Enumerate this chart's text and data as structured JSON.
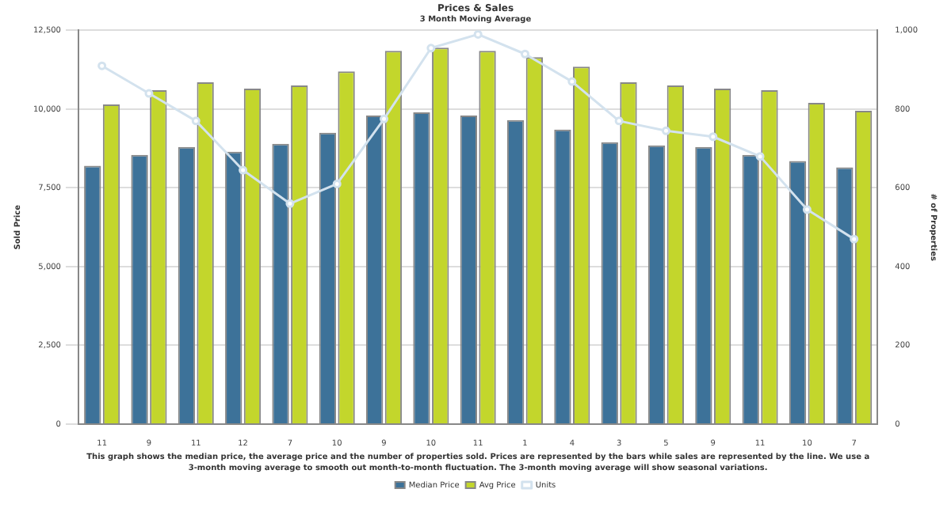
{
  "chart_data": {
    "type": "bar",
    "title": "Prices & Sales",
    "subtitle": "3 Month Moving Average",
    "ylabel": "Sold Price",
    "y2label": "# of Properties",
    "categories": [
      "11",
      "9",
      "11",
      "12",
      "7",
      "10",
      "9",
      "10",
      "11",
      "1",
      "4",
      "3",
      "5",
      "9",
      "11",
      "10",
      "7"
    ],
    "series": [
      {
        "name": "Median Price",
        "color": "#3d7299",
        "values": [
          8200,
          8550,
          8800,
          8650,
          8900,
          9250,
          9800,
          9900,
          9800,
          9650,
          9350,
          8950,
          8850,
          8800,
          8550,
          8350,
          8150
        ]
      },
      {
        "name": "Avg Price",
        "color": "#c3d62c",
        "values": [
          10150,
          10600,
          10850,
          10650,
          10750,
          11200,
          11850,
          11950,
          11850,
          11650,
          11350,
          10850,
          10750,
          10650,
          10600,
          10200,
          9950
        ]
      },
      {
        "name": "Units",
        "type": "line",
        "axis": "y2",
        "color": "#d3e2ee",
        "values": [
          910,
          840,
          770,
          645,
          560,
          610,
          775,
          955,
          990,
          940,
          870,
          770,
          745,
          730,
          680,
          545,
          470
        ]
      }
    ],
    "ylim": [
      0,
      12500
    ],
    "yticks": [
      0,
      {
        "value": 2500,
        "label": "2,500"
      },
      {
        "value": 5000,
        "label": "5,000"
      },
      {
        "value": 7500,
        "label": "7,500"
      },
      {
        "value": 10000,
        "label": "10,000"
      },
      {
        "value": 12500,
        "label": "12,500"
      }
    ],
    "y2lim": [
      0,
      1000
    ],
    "y2ticks": [
      0,
      200,
      400,
      600,
      800,
      {
        "value": 1000,
        "label": "1,000"
      }
    ],
    "grid": "y",
    "legend": "bottom",
    "marker": "circle",
    "line_style": "solid",
    "annotations": [
      "This graph shows the median price, the average price and the number of properties sold. Prices are represented by the bars while sales are represented by the line. We use a 3-month moving average to smooth out month-to-month fluctuation. The 3-month moving average will show seasonal variations."
    ]
  }
}
